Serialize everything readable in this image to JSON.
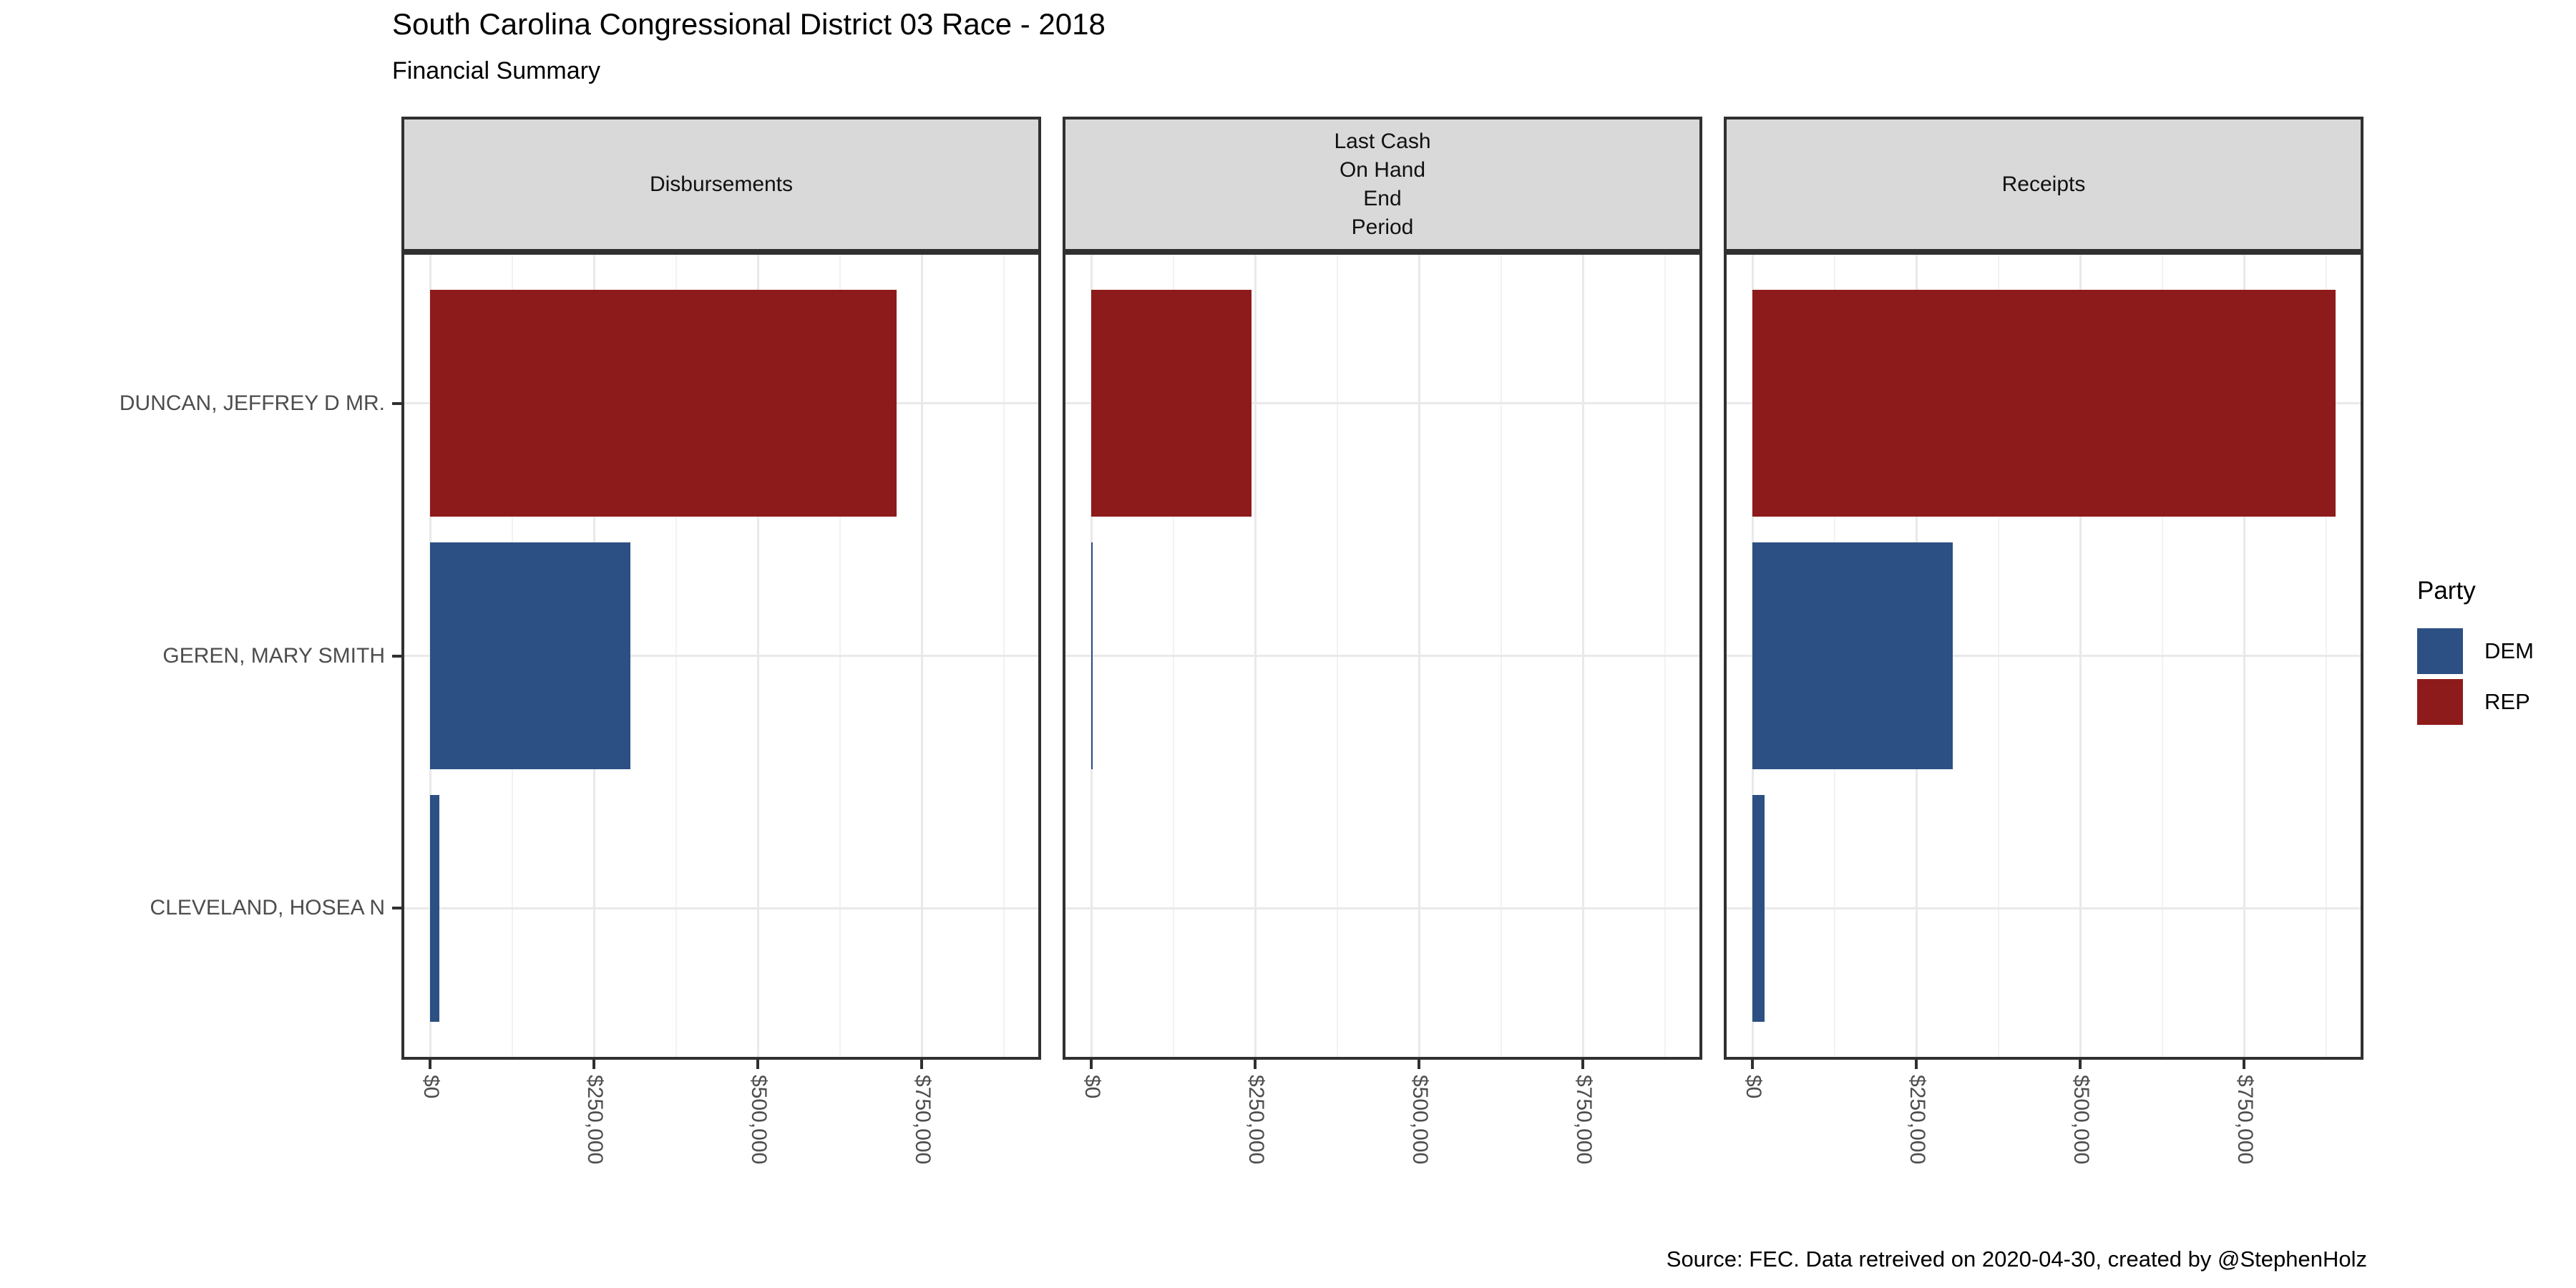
{
  "title": "South Carolina Congressional District 03 Race - 2018",
  "subtitle": "Financial Summary",
  "caption": "Source: FEC. Data retreived on 2020-04-30, created by @StephenHolz",
  "legend": {
    "title": "Party",
    "entries": [
      {
        "label": "DEM",
        "color": "#2C5083"
      },
      {
        "label": "REP",
        "color": "#8E1B1B"
      }
    ]
  },
  "colors": {
    "bar_dem": "#2C5083",
    "bar_rep": "#8E1B1B",
    "strip_bg": "#D9D9D9",
    "panel_border": "#303030",
    "grid_major": "#E9E9E9",
    "grid_minor": "#F2F2F2",
    "axis_text": "#4D4D4D"
  },
  "chart_data": {
    "type": "bar",
    "orientation": "horizontal",
    "title": "South Carolina Congressional District 03 Race - 2018",
    "subtitle": "Financial Summary",
    "categories": [
      "DUNCAN, JEFFREY D MR.",
      "GEREN, MARY SMITH",
      "CLEVELAND, HOSEA N"
    ],
    "category_party": [
      "REP",
      "DEM",
      "DEM"
    ],
    "facets": [
      {
        "label": "Disbursements",
        "values": [
          712000,
          306000,
          14000
        ]
      },
      {
        "label": "Last Cash\nOn Hand\nEnd\nPeriod",
        "values": [
          245000,
          1500,
          0
        ]
      },
      {
        "label": "Receipts",
        "values": [
          890000,
          306000,
          18500
        ]
      }
    ],
    "x_tick_labels": [
      "$0",
      "$250,000",
      "$500,000",
      "$750,000"
    ],
    "x_tick_values": [
      0,
      250000,
      500000,
      750000
    ],
    "x_minor_values": [
      125000,
      375000,
      625000,
      875000
    ],
    "xlim": [
      -44000,
      935000
    ],
    "ylabel": "",
    "xlabel": "",
    "grid": "major+minor",
    "legend_position": "right"
  }
}
